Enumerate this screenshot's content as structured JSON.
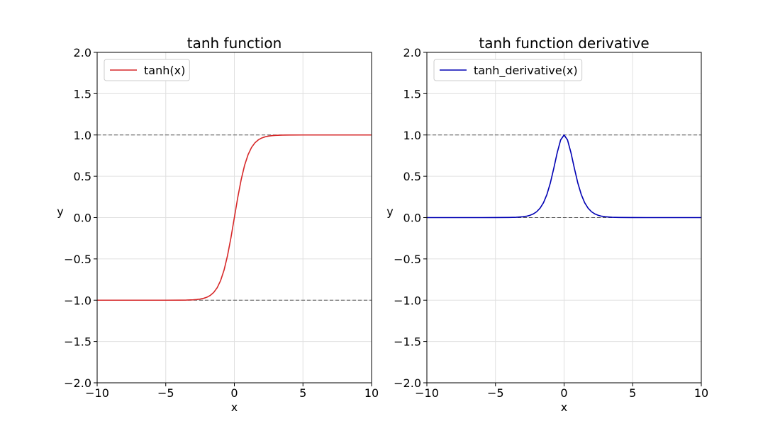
{
  "chart_data": [
    {
      "type": "line",
      "title": "tanh function",
      "xlabel": "x",
      "ylabel": "y",
      "xlim": [
        -10,
        10
      ],
      "ylim": [
        -2,
        2
      ],
      "xticks": [
        -10,
        -5,
        0,
        5,
        10
      ],
      "xtick_labels": [
        "−10",
        "−5",
        "0",
        "5",
        "10"
      ],
      "yticks": [
        -2,
        -1.5,
        -1,
        -0.5,
        0,
        0.5,
        1,
        1.5,
        2
      ],
      "ytick_labels": [
        "−2.0",
        "−1.5",
        "−1.0",
        "−0.5",
        "0.0",
        "0.5",
        "1.0",
        "1.5",
        "2.0"
      ],
      "grid": true,
      "legend_position": "top-left",
      "reference_lines_y": [
        1,
        -1
      ],
      "series": [
        {
          "name": "tanh(x)",
          "color": "#d62728",
          "x": [
            -10,
            -6,
            -5,
            -4,
            -3.5,
            -3,
            -2.75,
            -2.5,
            -2.25,
            -2,
            -1.75,
            -1.5,
            -1.25,
            -1,
            -0.75,
            -0.5,
            -0.25,
            0,
            0.25,
            0.5,
            0.75,
            1,
            1.25,
            1.5,
            1.75,
            2,
            2.25,
            2.5,
            2.75,
            3,
            3.5,
            4,
            5,
            6,
            10
          ],
          "y": [
            -1,
            -1,
            -0.9999,
            -0.9993,
            -0.9982,
            -0.9951,
            -0.9919,
            -0.9866,
            -0.978,
            -0.964,
            -0.9414,
            -0.9051,
            -0.8483,
            -0.7616,
            -0.6351,
            -0.4621,
            -0.2449,
            0,
            0.2449,
            0.4621,
            0.6351,
            0.7616,
            0.8483,
            0.9051,
            0.9414,
            0.964,
            0.978,
            0.9866,
            0.9919,
            0.9951,
            0.9982,
            0.9993,
            0.9999,
            1,
            1
          ]
        }
      ]
    },
    {
      "type": "line",
      "title": "tanh function derivative",
      "xlabel": "x",
      "ylabel": "y",
      "xlim": [
        -10,
        10
      ],
      "ylim": [
        -2,
        2
      ],
      "xticks": [
        -10,
        -5,
        0,
        5,
        10
      ],
      "xtick_labels": [
        "−10",
        "−5",
        "0",
        "5",
        "10"
      ],
      "yticks": [
        -2,
        -1.5,
        -1,
        -0.5,
        0,
        0.5,
        1,
        1.5,
        2
      ],
      "ytick_labels": [
        "−2.0",
        "−1.5",
        "−1.0",
        "−0.5",
        "0.0",
        "0.5",
        "1.0",
        "1.5",
        "2.0"
      ],
      "grid": true,
      "legend_position": "top-left",
      "reference_lines_y": [
        1,
        0
      ],
      "series": [
        {
          "name": "tanh_derivative(x)",
          "color": "#0000b3",
          "x": [
            -10,
            -6,
            -5,
            -4,
            -3.5,
            -3,
            -2.75,
            -2.5,
            -2.25,
            -2,
            -1.75,
            -1.5,
            -1.25,
            -1,
            -0.75,
            -0.5,
            -0.25,
            0,
            0.25,
            0.5,
            0.75,
            1,
            1.25,
            1.5,
            1.75,
            2,
            2.25,
            2.5,
            2.75,
            3,
            3.5,
            4,
            5,
            6,
            10
          ],
          "y": [
            0,
            0,
            0.0002,
            0.0013,
            0.0036,
            0.0099,
            0.0163,
            0.0266,
            0.0435,
            0.0707,
            0.1138,
            0.1807,
            0.2804,
            0.42,
            0.5966,
            0.7864,
            0.94,
            1,
            0.94,
            0.7864,
            0.5966,
            0.42,
            0.2804,
            0.1807,
            0.1138,
            0.0707,
            0.0435,
            0.0266,
            0.0163,
            0.0099,
            0.0036,
            0.0013,
            0.0002,
            0,
            0
          ]
        }
      ]
    }
  ]
}
